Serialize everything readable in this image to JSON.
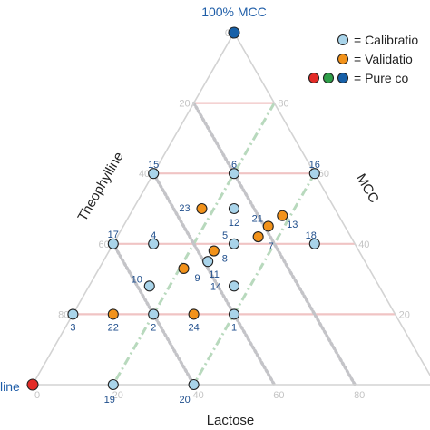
{
  "chart_data": {
    "type": "ternary-scatter",
    "vertex_labels": {
      "top": "100% MCC",
      "left": "line",
      "right": ""
    },
    "axis_titles": {
      "left": "Theophylline",
      "right": "MCC",
      "bottom": "Lactose"
    },
    "tick_labels": {
      "left": [
        "0",
        "20",
        "40",
        "60",
        "80"
      ],
      "right": [
        "80",
        "60",
        "40",
        "20"
      ],
      "bottom": [
        "0",
        "20",
        "40",
        "60",
        "80"
      ]
    },
    "legend": [
      {
        "label": "= Calibratio",
        "colors": [
          "#a9d4ea"
        ]
      },
      {
        "label": "= Validatio",
        "colors": [
          "#f2921a"
        ]
      },
      {
        "label": "= Pure co",
        "colors": [
          "#e32b27",
          "#2e9e48",
          "#1760a8"
        ]
      }
    ],
    "points": [
      {
        "id": "1",
        "mcc": 20,
        "theophylline": 40,
        "lactose": 40,
        "set": "calibration"
      },
      {
        "id": "2",
        "mcc": 20,
        "theophylline": 60,
        "lactose": 20,
        "set": "calibration"
      },
      {
        "id": "3",
        "mcc": 20,
        "theophylline": 80,
        "lactose": 0,
        "set": "calibration"
      },
      {
        "id": "4",
        "mcc": 40,
        "theophylline": 50,
        "lactose": 10,
        "set": "calibration"
      },
      {
        "id": "5",
        "mcc": 40,
        "theophylline": 30,
        "lactose": 30,
        "set": "calibration"
      },
      {
        "id": "6",
        "mcc": 60,
        "theophylline": 20,
        "lactose": 20,
        "set": "calibration"
      },
      {
        "id": "7",
        "mcc": 42,
        "theophylline": 23,
        "lactose": 35,
        "set": "validation"
      },
      {
        "id": "8",
        "mcc": 38,
        "theophylline": 36,
        "lactose": 26,
        "set": "validation"
      },
      {
        "id": "9",
        "mcc": 33,
        "theophylline": 46,
        "lactose": 21,
        "set": "validation"
      },
      {
        "id": "10",
        "mcc": 28,
        "theophylline": 57,
        "lactose": 15,
        "set": "calibration"
      },
      {
        "id": "11",
        "mcc": 35,
        "theophylline": 39,
        "lactose": 26,
        "set": "calibration"
      },
      {
        "id": "12",
        "mcc": 50,
        "theophylline": 25,
        "lactose": 25,
        "set": "calibration"
      },
      {
        "id": "13",
        "mcc": 48,
        "theophylline": 14,
        "lactose": 38,
        "set": "validation"
      },
      {
        "id": "14",
        "mcc": 28,
        "theophylline": 36,
        "lactose": 36,
        "set": "calibration"
      },
      {
        "id": "15",
        "mcc": 60,
        "theophylline": 40,
        "lactose": 0,
        "set": "calibration"
      },
      {
        "id": "16",
        "mcc": 60,
        "theophylline": 0,
        "lactose": 40,
        "set": "calibration"
      },
      {
        "id": "17",
        "mcc": 40,
        "theophylline": 60,
        "lactose": 0,
        "set": "calibration"
      },
      {
        "id": "18",
        "mcc": 40,
        "theophylline": 10,
        "lactose": 50,
        "set": "calibration"
      },
      {
        "id": "19",
        "mcc": 0,
        "theophylline": 80,
        "lactose": 20,
        "set": "calibration"
      },
      {
        "id": "20",
        "mcc": 0,
        "theophylline": 60,
        "lactose": 40,
        "set": "calibration"
      },
      {
        "id": "21",
        "mcc": 45,
        "theophylline": 19,
        "lactose": 36,
        "set": "validation"
      },
      {
        "id": "22",
        "mcc": 20,
        "theophylline": 70,
        "lactose": 10,
        "set": "validation"
      },
      {
        "id": "23",
        "mcc": 50,
        "theophylline": 33,
        "lactose": 17,
        "set": "validation"
      },
      {
        "id": "24",
        "mcc": 20,
        "theophylline": 50,
        "lactose": 30,
        "set": "validation"
      }
    ],
    "pure_components": [
      {
        "name": "MCC",
        "mcc": 100,
        "theophylline": 0,
        "lactose": 0,
        "color": "#1760a8"
      },
      {
        "name": "Theophylline",
        "mcc": 0,
        "theophylline": 100,
        "lactose": 0,
        "color": "#e32b27"
      }
    ],
    "guide_lines": {
      "mcc_levels": [
        20,
        40,
        60,
        80
      ],
      "lactose_levels": [
        20,
        40
      ],
      "theophylline_levels": [
        20,
        40,
        60
      ]
    },
    "colors": {
      "calibration": "#a9d4ea",
      "validation": "#f2921a",
      "frame": "#d3d3d3",
      "mcc_lines": "#f0c4c4",
      "lactose_lines": "#b8d9bd",
      "theophylline_lines": "#c4c4c8",
      "point_label": "#1f4e8c"
    }
  }
}
